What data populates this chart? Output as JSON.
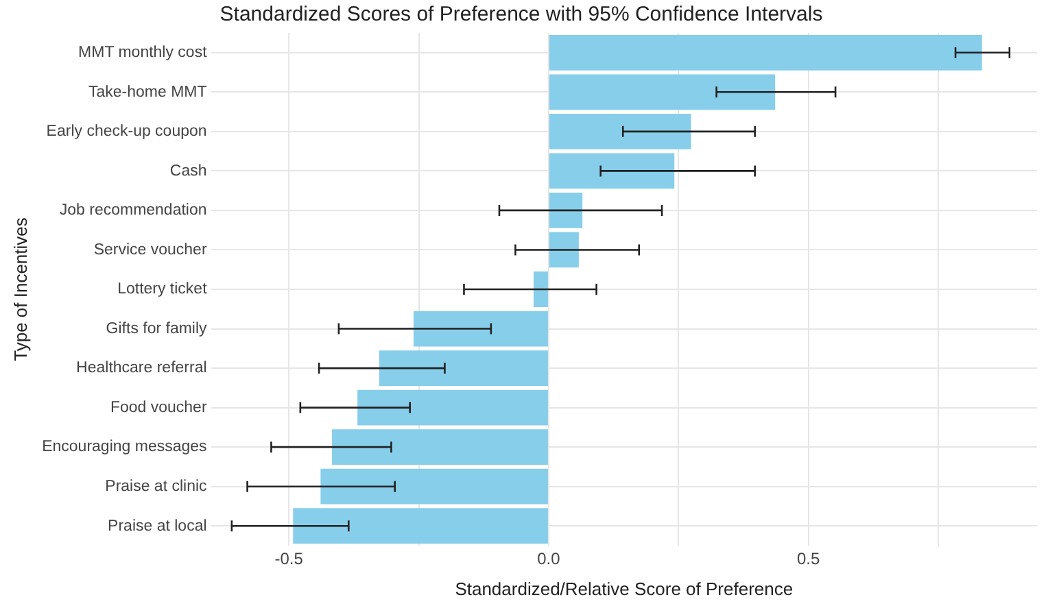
{
  "chart_data": {
    "type": "bar",
    "orientation": "horizontal",
    "title": "Standardized Scores of Preference with 95% Confidence Intervals",
    "xlabel": "Standardized/Relative Score of Preference",
    "ylabel": "Type of Incentives",
    "categories": [
      "MMT monthly cost",
      "Take-home MMT",
      "Early check-up coupon",
      "Cash",
      "Job recommendation",
      "Service voucher",
      "Lottery ticket",
      "Gifts for family",
      "Healthcare referral",
      "Food voucher",
      "Encouraging messages",
      "Praise at clinic",
      "Praise at local"
    ],
    "values": [
      0.834,
      0.436,
      0.274,
      0.242,
      0.065,
      0.058,
      -0.029,
      -0.26,
      -0.326,
      -0.368,
      -0.417,
      -0.439,
      -0.492
    ],
    "errors": [
      [
        0.783,
        0.887
      ],
      [
        0.323,
        0.552
      ],
      [
        0.143,
        0.397
      ],
      [
        0.1,
        0.397
      ],
      [
        -0.095,
        0.218
      ],
      [
        -0.064,
        0.174
      ],
      [
        -0.163,
        0.092
      ],
      [
        -0.404,
        -0.111
      ],
      [
        -0.442,
        -0.2
      ],
      [
        -0.478,
        -0.267
      ],
      [
        -0.534,
        -0.303
      ],
      [
        -0.58,
        -0.296
      ],
      [
        -0.61,
        -0.385
      ]
    ],
    "color": "#87ceeb",
    "xlim": [
      -0.65,
      0.94
    ],
    "xticks": [
      {
        "value": -0.5,
        "label": "-0.5"
      },
      {
        "value": -0.25,
        "label": null
      },
      {
        "value": 0,
        "label": "0.0"
      },
      {
        "value": 0.25,
        "label": null
      },
      {
        "value": 0.5,
        "label": "0.5"
      },
      {
        "value": 0.75,
        "label": null
      }
    ],
    "grid": true,
    "legend": false
  }
}
